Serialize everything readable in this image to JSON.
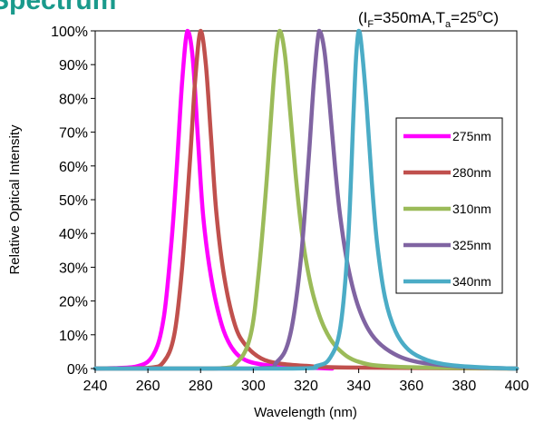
{
  "page_title_fragment": "Spectrum",
  "conditions": {
    "open": "(I",
    "if_sub": "F",
    "mid": "=350mA,T",
    "ta_sub": "a",
    "tail": "=25",
    "deg": "o",
    "close": "C)"
  },
  "chart_data": {
    "type": "line",
    "xlabel": "Wavelength (nm)",
    "ylabel": "Relative Optical Intensity",
    "xlim": [
      240,
      400
    ],
    "ylim": [
      0,
      100
    ],
    "x_ticks": [
      240,
      260,
      280,
      300,
      320,
      340,
      360,
      380,
      400
    ],
    "y_ticks": [
      0,
      10,
      20,
      30,
      40,
      50,
      60,
      70,
      80,
      90,
      100
    ],
    "y_tick_labels": [
      "0%",
      "10%",
      "20%",
      "30%",
      "40%",
      "50%",
      "60%",
      "70%",
      "80%",
      "90%",
      "100%"
    ],
    "grid": false,
    "legend_position": "right",
    "series": [
      {
        "name": "275nm",
        "color": "#ff00ff",
        "peak": 275,
        "fwhm": 10.5,
        "points": [
          [
            240,
            0
          ],
          [
            255,
            0.5
          ],
          [
            262,
            4
          ],
          [
            266,
            15
          ],
          [
            269,
            38
          ],
          [
            271,
            60
          ],
          [
            273,
            85
          ],
          [
            275,
            100
          ],
          [
            277,
            92
          ],
          [
            279,
            68
          ],
          [
            281,
            45
          ],
          [
            284,
            27
          ],
          [
            288,
            13
          ],
          [
            292,
            6
          ],
          [
            297,
            2.5
          ],
          [
            305,
            1
          ],
          [
            315,
            0.4
          ],
          [
            330,
            0
          ]
        ]
      },
      {
        "name": "280nm",
        "color": "#c0504d",
        "peak": 280,
        "fwhm": 10.5,
        "points": [
          [
            240,
            0
          ],
          [
            260,
            0.2
          ],
          [
            266,
            2
          ],
          [
            270,
            10
          ],
          [
            273,
            30
          ],
          [
            276,
            62
          ],
          [
            278,
            86
          ],
          [
            280,
            100
          ],
          [
            282,
            90
          ],
          [
            284,
            68
          ],
          [
            286,
            46
          ],
          [
            289,
            27
          ],
          [
            293,
            13
          ],
          [
            297,
            7
          ],
          [
            303,
            3
          ],
          [
            310,
            1.5
          ],
          [
            320,
            0.8
          ],
          [
            335,
            0.3
          ],
          [
            400,
            0
          ]
        ]
      },
      {
        "name": "310nm",
        "color": "#9bbb59",
        "peak": 310,
        "fwhm": 13,
        "points": [
          [
            240,
            0
          ],
          [
            285,
            0
          ],
          [
            294,
            2
          ],
          [
            299,
            10
          ],
          [
            302,
            28
          ],
          [
            305,
            55
          ],
          [
            308,
            88
          ],
          [
            310,
            100
          ],
          [
            312,
            93
          ],
          [
            314,
            76
          ],
          [
            316,
            58
          ],
          [
            318,
            43
          ],
          [
            320,
            32
          ],
          [
            323,
            21
          ],
          [
            327,
            12
          ],
          [
            332,
            6
          ],
          [
            340,
            2
          ],
          [
            355,
            0.5
          ],
          [
            400,
            0
          ]
        ]
      },
      {
        "name": "325nm",
        "color": "#8064a2",
        "peak": 325,
        "fwhm": 11,
        "points": [
          [
            240,
            0
          ],
          [
            300,
            0
          ],
          [
            309,
            2
          ],
          [
            314,
            10
          ],
          [
            318,
            32
          ],
          [
            321,
            62
          ],
          [
            323,
            85
          ],
          [
            325,
            100
          ],
          [
            327,
            94
          ],
          [
            329,
            78
          ],
          [
            331,
            60
          ],
          [
            333,
            45
          ],
          [
            336,
            30
          ],
          [
            340,
            18
          ],
          [
            345,
            10
          ],
          [
            352,
            5
          ],
          [
            362,
            2
          ],
          [
            380,
            0.5
          ],
          [
            400,
            0
          ]
        ]
      },
      {
        "name": "340nm",
        "color": "#4bacc6",
        "peak": 340,
        "fwhm": 9,
        "points": [
          [
            240,
            0
          ],
          [
            315,
            0
          ],
          [
            324,
            0.8
          ],
          [
            329,
            3
          ],
          [
            333,
            12
          ],
          [
            336,
            38
          ],
          [
            338,
            75
          ],
          [
            339,
            92
          ],
          [
            340,
            100
          ],
          [
            341,
            96
          ],
          [
            343,
            78
          ],
          [
            345,
            55
          ],
          [
            347,
            37
          ],
          [
            350,
            21
          ],
          [
            354,
            11
          ],
          [
            359,
            5.5
          ],
          [
            366,
            2.5
          ],
          [
            375,
            1
          ],
          [
            388,
            0.3
          ],
          [
            400,
            0
          ]
        ]
      }
    ]
  }
}
